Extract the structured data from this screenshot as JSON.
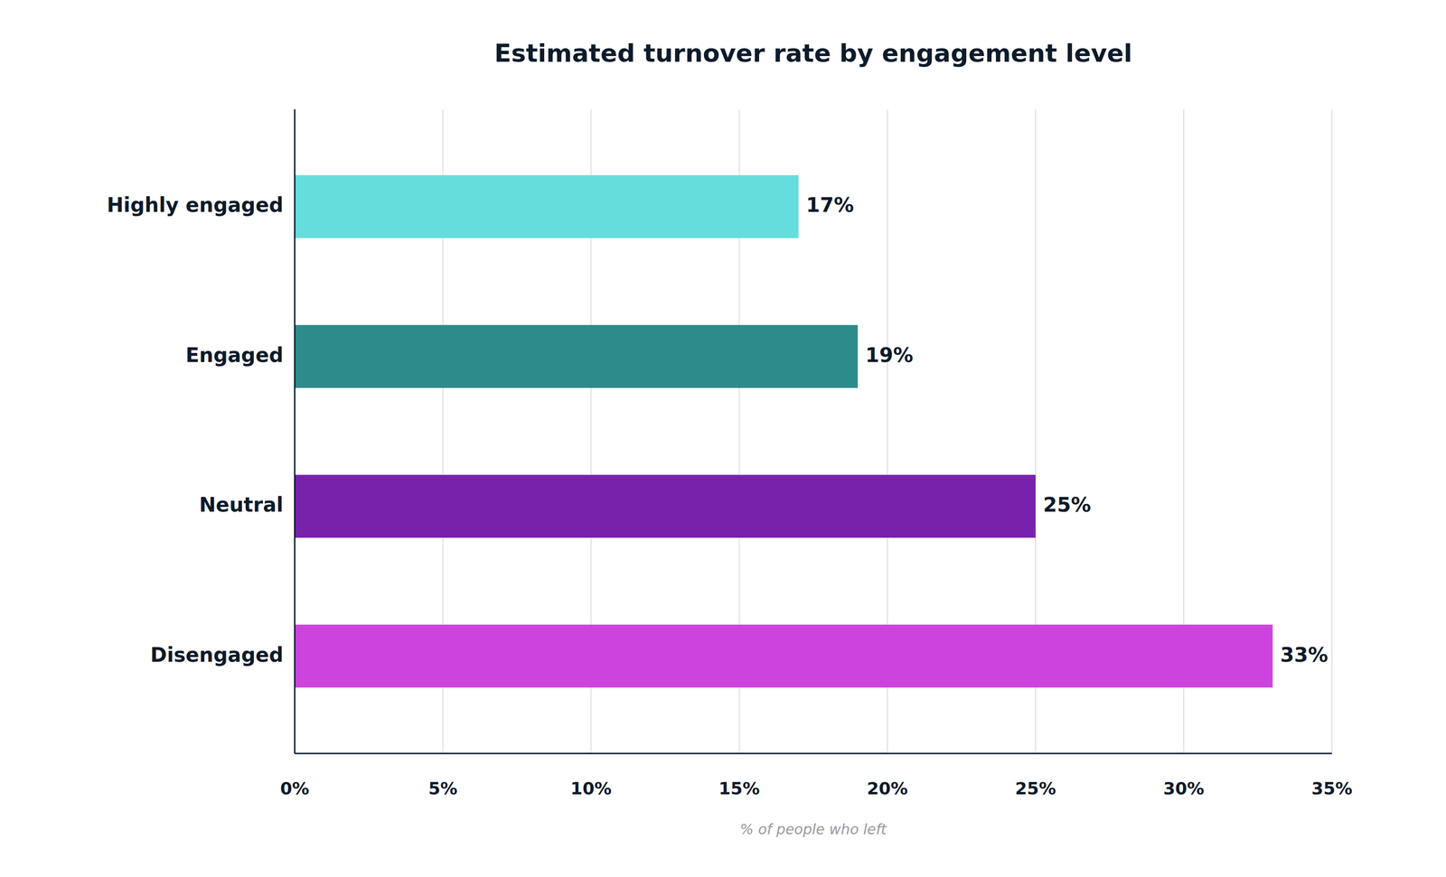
{
  "chart_data": {
    "type": "bar",
    "orientation": "horizontal",
    "title": "Estimated turnover rate by engagement level",
    "xlabel": "% of people who left",
    "categories": [
      "Disengaged",
      "Neutral",
      "Engaged",
      "Highly engaged"
    ],
    "values": [
      33,
      25,
      19,
      17
    ],
    "value_labels": [
      "33%",
      "25%",
      "19%",
      "17%"
    ],
    "colors": [
      "#CC44DD",
      "#7722AA",
      "#2E8B8B",
      "#66DDDD"
    ],
    "xlim": [
      0,
      35
    ],
    "xticks": [
      {
        "value": 0,
        "label": "0%"
      },
      {
        "value": 5,
        "label": "5%"
      },
      {
        "value": 10,
        "label": "10%"
      },
      {
        "value": 15,
        "label": "15%"
      },
      {
        "value": 20,
        "label": "20%"
      },
      {
        "value": 25,
        "label": "25%"
      },
      {
        "value": 30,
        "label": "30%"
      },
      {
        "value": 35,
        "label": "35%"
      }
    ],
    "grid": true,
    "data_labels": true
  }
}
